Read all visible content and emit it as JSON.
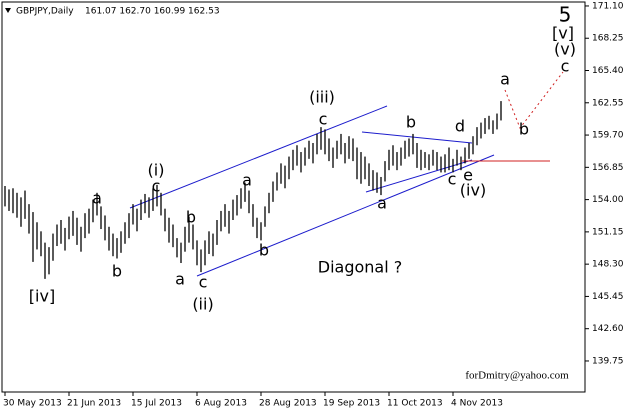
{
  "chart_data": {
    "type": "hl-bar",
    "title": "GBPJPY,Daily",
    "quote": "161.07 162.70 160.99 162.53",
    "color": "#000000",
    "grid": false,
    "high": [
      155.2,
      154.9,
      155.0,
      154.6,
      154.2,
      154.8,
      153.6,
      152.9,
      152.0,
      151.2,
      150.2,
      149.8,
      151.0,
      151.8,
      152.2,
      151.5,
      152.5,
      153.0,
      152.4,
      151.6,
      152.8,
      153.2,
      154.0,
      154.6,
      153.4,
      152.6,
      151.6,
      151.0,
      150.6,
      151.2,
      152.0,
      152.8,
      153.6,
      153.2,
      154.0,
      154.5,
      154.2,
      155.0,
      155.3,
      154.6,
      153.2,
      152.4,
      151.8,
      150.6,
      150.2,
      151.6,
      152.5,
      151.8,
      150.4,
      149.6,
      150.4,
      151.2,
      151.0,
      152.2,
      153.0,
      153.6,
      153.0,
      154.0,
      154.4,
      155.0,
      155.5,
      154.8,
      153.6,
      152.4,
      152.0,
      153.4,
      154.6,
      155.6,
      156.4,
      157.2,
      157.0,
      157.8,
      158.4,
      158.8,
      158.2,
      158.6,
      159.2,
      159.0,
      159.8,
      160.4,
      160.2,
      159.4,
      158.6,
      159.2,
      159.8,
      159.0,
      159.6,
      159.4,
      158.6,
      158.2,
      157.8,
      157.2,
      156.6,
      156.4,
      156.0,
      157.4,
      158.4,
      158.8,
      158.2,
      158.6,
      159.2,
      159.4,
      159.8,
      159.0,
      158.4,
      158.2,
      158.0,
      158.4,
      158.2,
      157.8,
      158.0,
      158.6,
      157.6,
      158.4,
      157.8,
      158.6,
      159.0,
      159.6,
      160.4,
      160.8,
      161.2,
      161.4,
      161.0,
      161.6,
      162.7
    ],
    "low": [
      153.4,
      153.0,
      152.8,
      152.4,
      151.6,
      152.3,
      151.0,
      148.5,
      149.6,
      149.0,
      147.0,
      147.4,
      148.6,
      149.9,
      150.1,
      149.5,
      150.5,
      150.8,
      150.0,
      149.4,
      150.6,
      151.0,
      152.0,
      152.6,
      151.4,
      150.4,
      149.5,
      149.0,
      148.8,
      149.3,
      150.1,
      150.6,
      151.8,
      151.2,
      152.2,
      152.8,
      152.4,
      153.0,
      153.4,
      152.6,
      151.2,
      150.2,
      149.8,
      148.9,
      148.4,
      149.4,
      150.2,
      149.6,
      148.2,
      147.6,
      148.2,
      149.2,
      149.0,
      150.0,
      151.2,
      151.6,
      151.0,
      152.2,
      152.6,
      153.2,
      153.8,
      152.8,
      151.6,
      150.6,
      150.4,
      151.6,
      152.8,
      153.8,
      154.8,
      155.4,
      155.0,
      155.8,
      156.6,
      157.0,
      156.4,
      157.0,
      157.6,
      157.2,
      158.0,
      158.4,
      158.0,
      157.4,
      156.8,
      157.6,
      158.0,
      157.2,
      157.6,
      157.4,
      155.8,
      155.4,
      155.8,
      155.2,
      154.8,
      154.6,
      154.4,
      155.6,
      156.6,
      157.0,
      156.6,
      157.0,
      157.6,
      157.8,
      158.0,
      156.8,
      156.6,
      156.8,
      156.6,
      157.0,
      156.6,
      156.4,
      156.4,
      156.6,
      156.4,
      157.0,
      156.6,
      157.2,
      157.6,
      158.0,
      158.8,
      159.4,
      159.8,
      160.2,
      159.8,
      160.2,
      160.99
    ],
    "ylim": [
      137.01,
      171.45
    ],
    "yticks": [
      {
        "value": 139.75,
        "label": "139.75"
      },
      {
        "value": 142.6,
        "label": "142.60"
      },
      {
        "value": 145.45,
        "label": "145.45"
      },
      {
        "value": 148.3,
        "label": "148.30"
      },
      {
        "value": 151.15,
        "label": "151.15"
      },
      {
        "value": 154,
        "label": "154.00"
      },
      {
        "value": 156.85,
        "label": "156.85"
      },
      {
        "value": 159.7,
        "label": "159.70"
      },
      {
        "value": 162.55,
        "label": "162.55"
      },
      {
        "value": 165.4,
        "label": "165.40"
      },
      {
        "value": 168.25,
        "label": "168.25"
      },
      {
        "value": 171.1,
        "label": "171.10"
      }
    ],
    "xticks": [
      {
        "value": 0,
        "label": "30 May 2013"
      },
      {
        "value": 16,
        "label": "21 Jun 2013"
      },
      {
        "value": 32,
        "label": "15 Jul 2013"
      },
      {
        "value": 48,
        "label": "6 Aug 2013"
      },
      {
        "value": 64,
        "label": "28 Aug 2013"
      },
      {
        "value": 80,
        "label": "19 Sep 2013"
      },
      {
        "value": 96,
        "label": "11 Oct 2013"
      },
      {
        "value": 112,
        "label": "4 Nov 2013"
      }
    ],
    "annotations": [
      "5",
      "[v]",
      "(v)",
      "c",
      "a",
      "b",
      "(iii)",
      "c",
      "b",
      "d",
      "c",
      "e",
      "(iv)",
      "a",
      "(i)",
      "c",
      "a",
      "a",
      "b",
      "b",
      "b",
      "a",
      "c",
      "(ii)",
      "[iv]",
      "Diagonal ?",
      "forDmitry@yahoo.com"
    ]
  }
}
